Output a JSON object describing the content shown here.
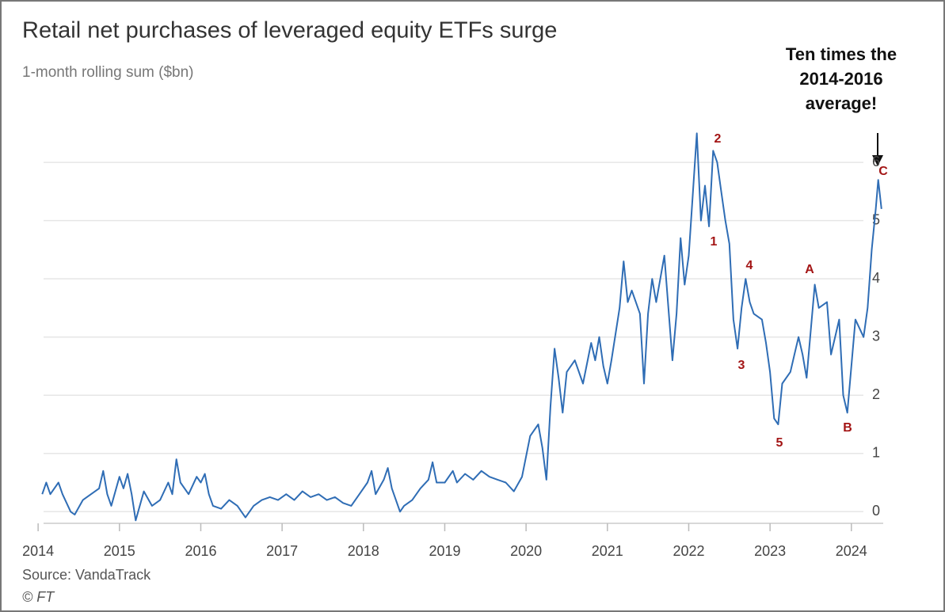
{
  "chart_data": {
    "type": "line",
    "title": "Retail net purchases of leveraged equity ETFs surge",
    "subtitle": "1-month rolling sum ($bn)",
    "source": "Source: VandaTrack",
    "credit": "© FT",
    "annotation": [
      "Ten times the",
      "2014-2016",
      "average!"
    ],
    "wave_labels": [
      "1",
      "2",
      "3",
      "4",
      "5",
      "A",
      "B",
      "C"
    ],
    "color": "#2f6db5",
    "grid": true,
    "xlim": [
      2013.95,
      2024.45
    ],
    "xticks": [
      2014,
      2015,
      2016,
      2017,
      2018,
      2019,
      2020,
      2021,
      2022,
      2023,
      2024
    ],
    "ylim": [
      -0.2,
      6.6
    ],
    "yticks": [
      0,
      1,
      2,
      3,
      4,
      5,
      6
    ],
    "x": [
      2014.05,
      2014.1,
      2014.15,
      2014.25,
      2014.3,
      2014.4,
      2014.45,
      2014.55,
      2014.65,
      2014.75,
      2014.8,
      2014.85,
      2014.9,
      2015.0,
      2015.05,
      2015.1,
      2015.15,
      2015.2,
      2015.3,
      2015.4,
      2015.5,
      2015.6,
      2015.65,
      2015.7,
      2015.75,
      2015.85,
      2015.95,
      2016.0,
      2016.05,
      2016.1,
      2016.15,
      2016.25,
      2016.35,
      2016.45,
      2016.5,
      2016.55,
      2016.65,
      2016.75,
      2016.85,
      2016.95,
      2017.05,
      2017.15,
      2017.25,
      2017.35,
      2017.45,
      2017.55,
      2017.65,
      2017.75,
      2017.85,
      2017.95,
      2018.05,
      2018.1,
      2018.15,
      2018.25,
      2018.3,
      2018.35,
      2018.45,
      2018.5,
      2018.6,
      2018.7,
      2018.8,
      2018.85,
      2018.9,
      2019.0,
      2019.1,
      2019.15,
      2019.25,
      2019.35,
      2019.45,
      2019.55,
      2019.65,
      2019.75,
      2019.85,
      2019.95,
      2020.05,
      2020.15,
      2020.2,
      2020.25,
      2020.3,
      2020.35,
      2020.4,
      2020.45,
      2020.5,
      2020.6,
      2020.7,
      2020.8,
      2020.85,
      2020.9,
      2020.95,
      2021.0,
      2021.05,
      2021.15,
      2021.2,
      2021.25,
      2021.3,
      2021.4,
      2021.45,
      2021.5,
      2021.55,
      2021.6,
      2021.7,
      2021.75,
      2021.8,
      2021.85,
      2021.9,
      2021.95,
      2022.0,
      2022.1,
      2022.15,
      2022.2,
      2022.25,
      2022.3,
      2022.35,
      2022.4,
      2022.45,
      2022.5,
      2022.55,
      2022.6,
      2022.65,
      2022.7,
      2022.75,
      2022.8,
      2022.9,
      2022.95,
      2023.0,
      2023.05,
      2023.1,
      2023.15,
      2023.25,
      2023.3,
      2023.35,
      2023.4,
      2023.45,
      2023.55,
      2023.6,
      2023.7,
      2023.75,
      2023.85,
      2023.9,
      2023.95,
      2024.0,
      2024.05,
      2024.15,
      2024.2,
      2024.25,
      2024.3,
      2024.33,
      2024.37
    ],
    "values": [
      0.3,
      0.5,
      0.3,
      0.5,
      0.3,
      0.0,
      -0.05,
      0.2,
      0.3,
      0.4,
      0.7,
      0.3,
      0.1,
      0.6,
      0.4,
      0.65,
      0.3,
      -0.15,
      0.35,
      0.1,
      0.2,
      0.5,
      0.3,
      0.9,
      0.5,
      0.3,
      0.6,
      0.5,
      0.65,
      0.3,
      0.1,
      0.05,
      0.2,
      0.1,
      0.0,
      -0.1,
      0.1,
      0.2,
      0.25,
      0.2,
      0.3,
      0.2,
      0.35,
      0.25,
      0.3,
      0.2,
      0.25,
      0.15,
      0.1,
      0.3,
      0.5,
      0.7,
      0.3,
      0.55,
      0.75,
      0.4,
      0.0,
      0.1,
      0.2,
      0.4,
      0.55,
      0.85,
      0.5,
      0.5,
      0.7,
      0.5,
      0.65,
      0.55,
      0.7,
      0.6,
      0.55,
      0.5,
      0.35,
      0.6,
      1.3,
      1.5,
      1.1,
      0.55,
      1.8,
      2.8,
      2.3,
      1.7,
      2.4,
      2.6,
      2.2,
      2.9,
      2.6,
      3.0,
      2.5,
      2.2,
      2.6,
      3.5,
      4.3,
      3.6,
      3.8,
      3.4,
      2.2,
      3.4,
      4.0,
      3.6,
      4.4,
      3.5,
      2.6,
      3.4,
      4.7,
      3.9,
      4.4,
      6.5,
      5.0,
      5.6,
      4.9,
      6.2,
      6.0,
      5.5,
      5.0,
      4.6,
      3.3,
      2.8,
      3.5,
      4.0,
      3.6,
      3.4,
      3.3,
      2.9,
      2.4,
      1.6,
      1.5,
      2.2,
      2.4,
      2.7,
      3.0,
      2.7,
      2.3,
      3.9,
      3.5,
      3.6,
      2.7,
      3.3,
      2.0,
      1.7,
      2.5,
      3.3,
      3.0,
      3.5,
      4.5,
      5.2,
      5.7,
      5.2
    ]
  }
}
